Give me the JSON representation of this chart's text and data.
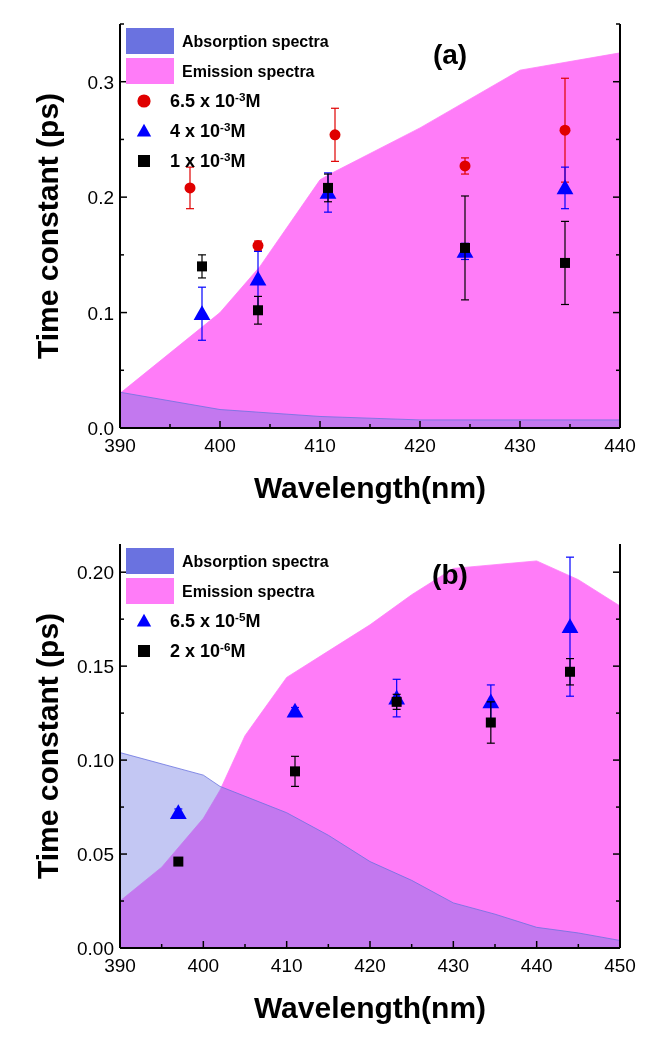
{
  "chart_data": [
    {
      "type": "scatter",
      "title": "(a)",
      "xlabel": "Wavelength(nm)",
      "ylabel": "Time constant (ps)",
      "xlim": [
        390,
        440
      ],
      "xticks": [
        390,
        {
          "value": 395,
          "label": null
        },
        400,
        {
          "value": 405,
          "label": null
        },
        410,
        {
          "value": 415,
          "label": null
        },
        420,
        {
          "value": 425,
          "label": null
        },
        430,
        {
          "value": 435,
          "label": null
        },
        440
      ],
      "ylim": [
        0,
        0.35
      ],
      "yticks": [
        {
          "value": 0,
          "label": "0.0"
        },
        {
          "value": 0.05,
          "label": null
        },
        0.1,
        {
          "value": 0.15,
          "label": null
        },
        0.2,
        {
          "value": 0.25,
          "label": null
        },
        0.3,
        {
          "value": 0.35,
          "label": null
        }
      ],
      "legend": "top left",
      "series": [
        {
          "name": "Absorption spectra",
          "type": "area",
          "color": "#6a72e0",
          "x": [
            390,
            400,
            410,
            420,
            440
          ],
          "values": [
            0.031,
            0.016,
            0.01,
            0.007,
            0.007
          ]
        },
        {
          "name": "Emission spectra",
          "type": "area",
          "color": "#ff7cf8",
          "x": [
            390,
            400,
            404,
            410,
            411,
            420,
            430,
            440
          ],
          "values": [
            0.03,
            0.1,
            0.14,
            0.215,
            0.22,
            0.26,
            0.31,
            0.325
          ]
        },
        {
          "name": "6.5 x 10$^{-3}$M",
          "type": "scatter",
          "marker": "circle",
          "color": "#e00000",
          "x": [
            397,
            403.8,
            411.5,
            424.5,
            434.5
          ],
          "values": [
            0.208,
            0.158,
            0.254,
            0.227,
            0.258
          ],
          "errors": [
            0.018,
            0.004,
            0.023,
            0.007,
            0.045
          ]
        },
        {
          "name": "4 x 10$^{-3}$M",
          "type": "scatter",
          "marker": "triangle",
          "color": "#0000ff",
          "x": [
            398.2,
            403.8,
            410.8,
            424.5,
            434.5
          ],
          "values": [
            0.099,
            0.129,
            0.204,
            0.153,
            0.208
          ],
          "errors": [
            0.023,
            0.024,
            0.017,
            0.007,
            0.018
          ]
        },
        {
          "name": "1 x 10$^{-3}$M",
          "type": "scatter",
          "marker": "square",
          "color": "#000000",
          "x": [
            398.2,
            403.8,
            410.8,
            424.5,
            434.5
          ],
          "values": [
            0.14,
            0.102,
            0.208,
            0.156,
            0.143
          ],
          "errors": [
            0.01,
            0.012,
            0.012,
            0.045,
            0.036
          ]
        }
      ]
    },
    {
      "type": "scatter",
      "title": "(b)",
      "xlabel": "Wavelength(nm)",
      "ylabel": "Time constant (ps)",
      "xlim": [
        390,
        450
      ],
      "xticks": [
        390,
        {
          "value": 395,
          "label": null
        },
        400,
        {
          "value": 405,
          "label": null
        },
        410,
        {
          "value": 415,
          "label": null
        },
        420,
        {
          "value": 425,
          "label": null
        },
        430,
        {
          "value": 435,
          "label": null
        },
        440,
        {
          "value": 445,
          "label": null
        },
        450
      ],
      "ylim": [
        0,
        0.215
      ],
      "yticks": [
        {
          "value": 0,
          "label": "0.00"
        },
        {
          "value": 0.025,
          "label": null
        },
        0.05,
        {
          "value": 0.075,
          "label": null
        },
        {
          "value": 0.1,
          "label": "0.10"
        },
        {
          "value": 0.125,
          "label": null
        },
        0.15,
        {
          "value": 0.175,
          "label": null
        },
        {
          "value": 0.2,
          "label": "0.20"
        }
      ],
      "legend": "top left",
      "series": [
        {
          "name": "Absorption spectra",
          "type": "area",
          "color": "#6a72e0",
          "x": [
            390,
            400,
            402,
            410,
            415,
            420,
            425,
            430,
            435,
            440,
            445,
            450
          ],
          "values": [
            0.104,
            0.092,
            0.086,
            0.072,
            0.06,
            0.046,
            0.036,
            0.024,
            0.018,
            0.011,
            0.008,
            0.004
          ]
        },
        {
          "name": "Emission spectra",
          "type": "area",
          "color": "#ff7cf8",
          "x": [
            390,
            395,
            400,
            402,
            405,
            410,
            415,
            420,
            425,
            430,
            435,
            440,
            445,
            450
          ],
          "values": [
            0.025,
            0.043,
            0.069,
            0.084,
            0.113,
            0.144,
            0.158,
            0.172,
            0.188,
            0.202,
            0.204,
            0.206,
            0.196,
            0.182
          ]
        },
        {
          "name": "6.5 x 10$^{-5}$M",
          "type": "scatter",
          "marker": "triangle",
          "color": "#0000ff",
          "x": [
            397,
            411,
            423.2,
            434.5,
            444
          ],
          "values": [
            0.072,
            0.126,
            0.133,
            0.131,
            0.171
          ],
          "errors": [
            0.002,
            0.002,
            0.01,
            0.009,
            0.037
          ]
        },
        {
          "name": "2 x 10$^{-6}$M",
          "type": "scatter",
          "marker": "square",
          "color": "#000000",
          "x": [
            397,
            411,
            423.2,
            434.5,
            444
          ],
          "values": [
            0.046,
            0.094,
            0.131,
            0.12,
            0.147
          ],
          "errors": [
            null,
            0.008,
            0.004,
            0.011,
            0.007
          ]
        }
      ]
    }
  ]
}
